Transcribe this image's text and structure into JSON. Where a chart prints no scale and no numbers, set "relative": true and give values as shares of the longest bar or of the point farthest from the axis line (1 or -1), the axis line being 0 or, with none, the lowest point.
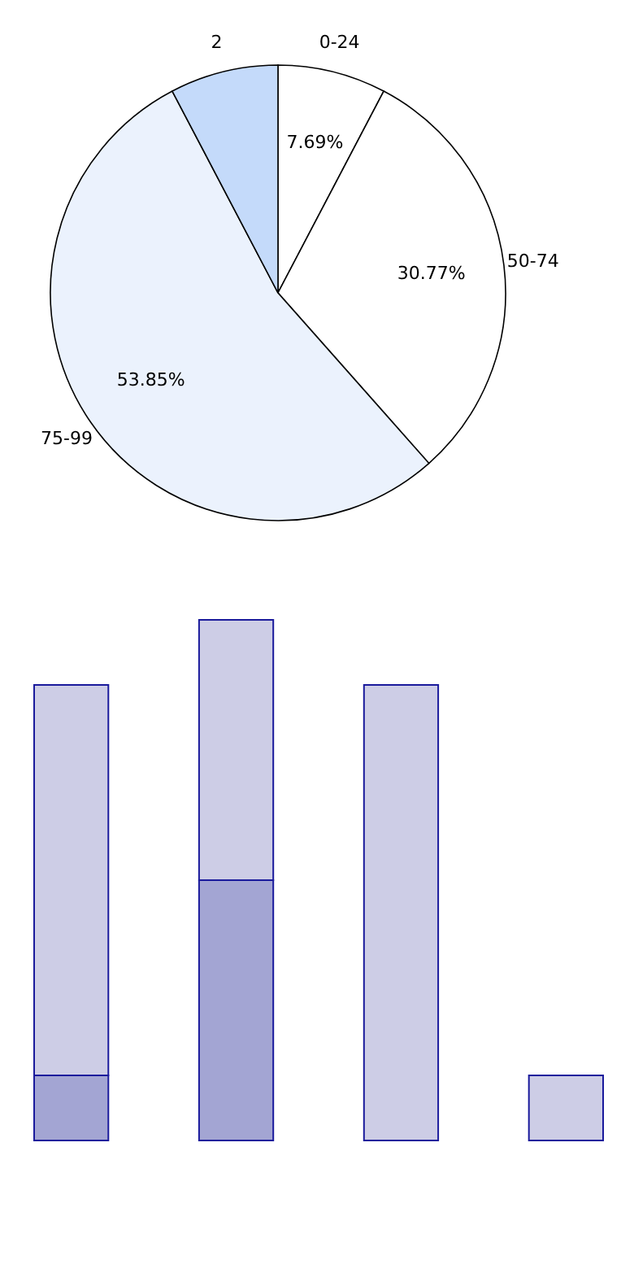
{
  "chart_data": [
    {
      "type": "pie",
      "categories": [
        "0-24",
        "50-74",
        "75-99",
        "2"
      ],
      "values": [
        7.69,
        30.77,
        53.85,
        7.69
      ],
      "colors": [
        "#ffffff",
        "#ffffff",
        "#ebf2fd",
        "#c4dafa"
      ],
      "value_labels": [
        "7.69%",
        "30.77%",
        "53.85%",
        null
      ]
    },
    {
      "type": "bar",
      "relative": true,
      "stacked": true,
      "categories": [
        null,
        null,
        null,
        null
      ],
      "series": [
        {
          "color": "#a3a5d3",
          "values": [
            0.125,
            0.5,
            0,
            0
          ]
        },
        {
          "color": "#cdcde6",
          "values": [
            0.75,
            0.5,
            0.875,
            0.125
          ]
        }
      ]
    }
  ]
}
